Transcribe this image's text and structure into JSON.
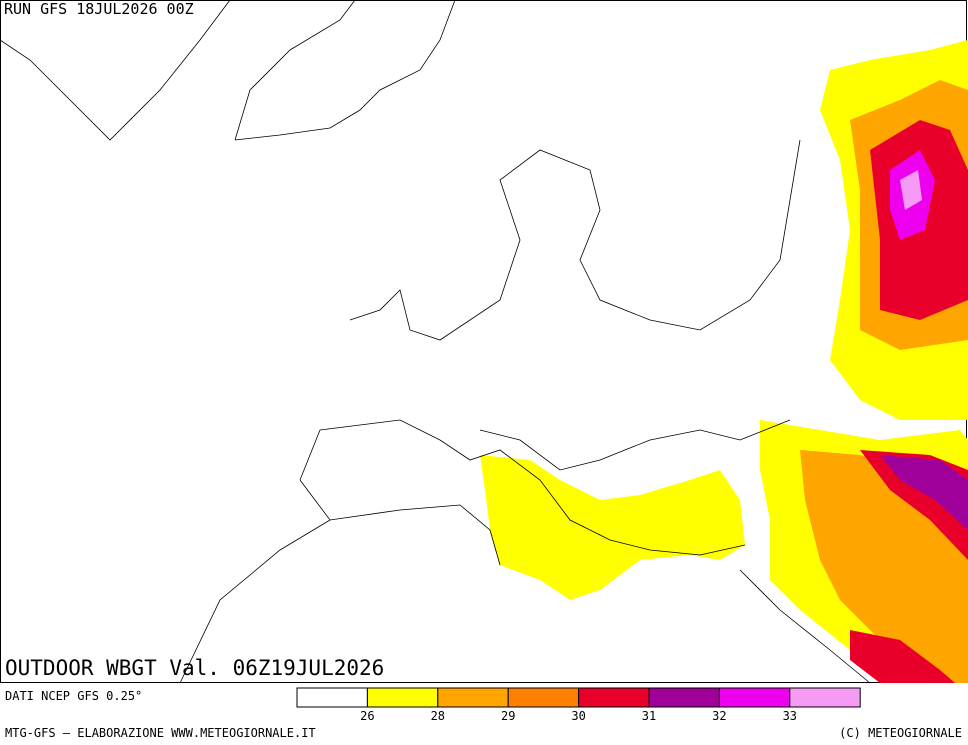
{
  "header": {
    "run": "RUN GFS 18JUL2026 00Z"
  },
  "map": {
    "title": "OUTDOOR WBGT Val. 06Z19JUL2026"
  },
  "footer": {
    "source": "DATI NCEP GFS 0.25°",
    "credit": "MTG-GFS — ELABORAZIONE WWW.METEOGIORNALE.IT",
    "copyright": "(C) METEOGIORNALE"
  },
  "legend": {
    "ticks": [
      26,
      28,
      29,
      30,
      31,
      32,
      33
    ],
    "colors": [
      "#ffffff",
      "#ffff00",
      "#ffa500",
      "#ff7f00",
      "#e8002a",
      "#a0009a",
      "#ee00ee",
      "#f59af5"
    ]
  }
}
